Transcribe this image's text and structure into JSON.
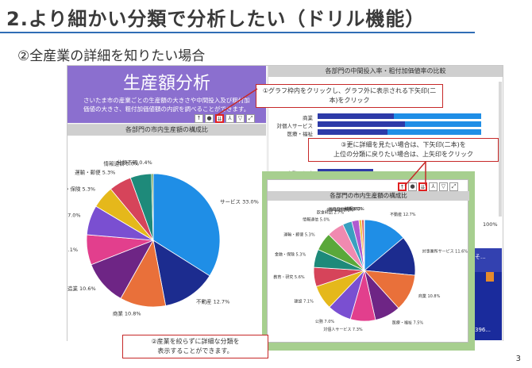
{
  "slide": {
    "title": "2.より細かい分類で分析したい（ドリル機能）",
    "subtitle": "②全産業の詳細を知りたい場合",
    "page_number": "3"
  },
  "dashboard": {
    "banner_title": "生産額分析",
    "banner_desc": "さいたま市の産業ごとの生産額の大きさや中間投入及び粗付加価値の大きさ、粗付加価値額の内訳を調べることができます。",
    "left_panel_title": "各部門の市内生産額の構成比",
    "right_panel_title": "各部門の中間投入率・粗付加価値率の比較",
    "right_rows": [
      "商業",
      "対個人サービス",
      "医療・福祉",
      "",
      "金融・保険",
      "公務"
    ],
    "right_axis_max": "100%",
    "right_dark_label": "そ...",
    "right_dark_value": "396..."
  },
  "callouts": {
    "c1": "①グラフ枠内をクリックし、グラフ外に表示される下矢印(二本)をクリック",
    "c3_line1": "③更に詳細を見たい場合は、下矢印(二本)を",
    "c3_line2": "上位の分類に戻りたい場合は、上矢印をクリック",
    "c2_line1": "②産業を絞らずに詳細な分類を",
    "c2_line2": "表示することができます。"
  },
  "zoom": {
    "title": "各部門の市内生産額の構成比"
  },
  "chart_data": [
    {
      "type": "pie",
      "title": "各部門の市内生産額の構成比",
      "slices": [
        {
          "label": "サービス",
          "value": 33.0,
          "color": "#1f8ee6"
        },
        {
          "label": "不動産",
          "value": 12.7,
          "color": "#1c2c8f"
        },
        {
          "label": "商業",
          "value": 10.8,
          "color": "#e9703a"
        },
        {
          "label": "製造業",
          "value": 10.6,
          "color": "#6e2585"
        },
        {
          "label": "建設",
          "value": 7.1,
          "color": "#e23f8d"
        },
        {
          "label": "公務",
          "value": 7.0,
          "color": "#7a4fd1"
        },
        {
          "label": "金融・保険",
          "value": 5.3,
          "color": "#e5b81b"
        },
        {
          "label": "運輸・郵便",
          "value": 5.3,
          "color": "#d6445a"
        },
        {
          "label": "情報通信",
          "value": 5.0,
          "color": "#1e8a7a"
        },
        {
          "label": "分類不明",
          "value": 0.4,
          "color": "#6a9a3d"
        }
      ]
    },
    {
      "type": "pie",
      "title": "各部門の市内生産額の構成比",
      "slices": [
        {
          "label": "不動産",
          "value": 12.7,
          "color": "#1f8ee6"
        },
        {
          "label": "対事業所サービス",
          "value": 11.6,
          "color": "#1c2c8f"
        },
        {
          "label": "商業",
          "value": 10.8,
          "color": "#e9703a"
        },
        {
          "label": "医療・福祉",
          "value": 7.5,
          "color": "#6e2585"
        },
        {
          "label": "対個人サービス",
          "value": 7.3,
          "color": "#e23f8d"
        },
        {
          "label": "公務",
          "value": 7.0,
          "color": "#7a4fd1"
        },
        {
          "label": "建設",
          "value": 7.1,
          "color": "#e5b81b"
        },
        {
          "label": "教育・研究",
          "value": 5.6,
          "color": "#d6445a"
        },
        {
          "label": "金融・保険",
          "value": 5.3,
          "color": "#1e8a7a"
        },
        {
          "label": "運輸・郵便",
          "value": 5.3,
          "color": "#5aa83a"
        },
        {
          "label": "情報通信",
          "value": 5.0,
          "color": "#f08ab0"
        },
        {
          "label": "飲食料品",
          "value": 2.7,
          "color": "#3aa0c0"
        },
        {
          "label": "化学製品",
          "value": 2.1,
          "color": "#b05ad0"
        },
        {
          "label": "業務用機械",
          "value": 0.8,
          "color": "#f0c040"
        },
        {
          "label": "水道",
          "value": 0.7,
          "color": "#e06060"
        },
        {
          "label": "鉄鋼",
          "value": 0.1,
          "color": "#60c0a0"
        }
      ],
      "printed_labels": [
        "不動産 12.7%",
        "対事業所サービス 11.6%",
        "商業 10.8%",
        "医療・福祉 7.5%",
        "対個人サービス 7.3%",
        "公務 7.0%",
        "建設 7.1%",
        "教育・研究 5.6%",
        "金融・保険 5.3%",
        "運輸・郵便 5.3%",
        "情報通信 5.0%",
        "飲食料品 2.7%",
        "化学製品 2.1%",
        "業務用機械 0.8%",
        "水道 0.7%",
        "鉄鋼 0.1%"
      ]
    }
  ]
}
